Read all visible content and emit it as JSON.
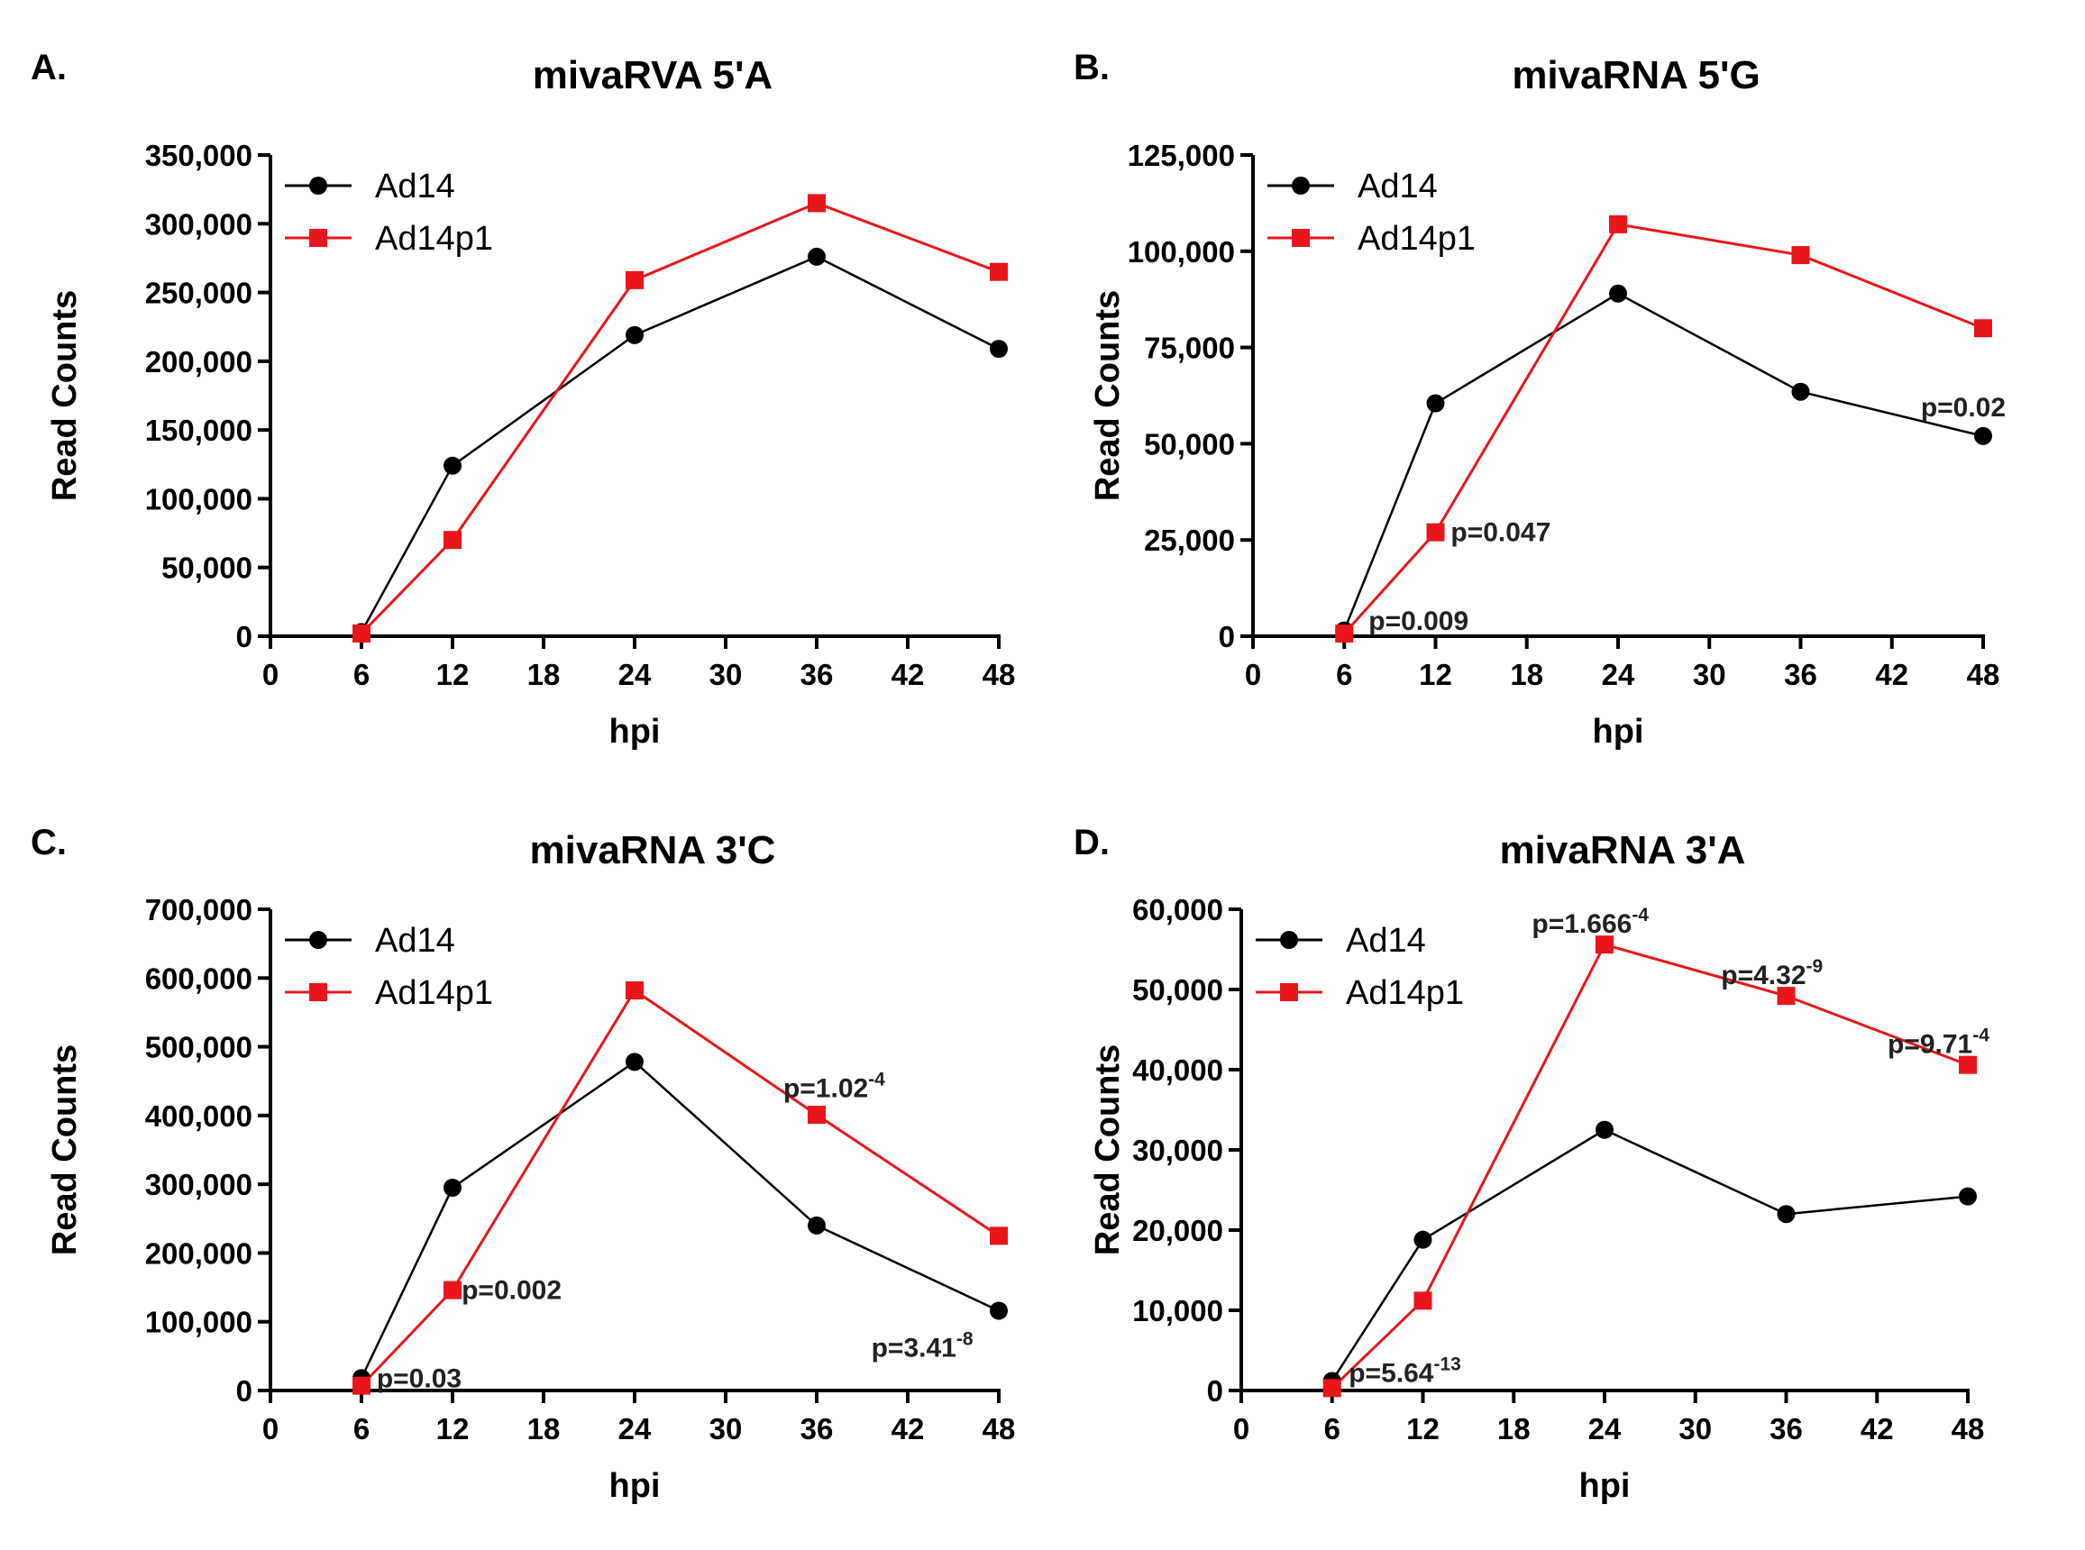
{
  "chart_data": [
    {
      "panel_label": "A.",
      "title": "mivaRVA 5'A",
      "type": "line",
      "xlabel": "hpi",
      "ylabel": "Read Counts",
      "xlim": [
        0,
        48
      ],
      "ylim": [
        0,
        350000
      ],
      "xticks": [
        0,
        6,
        12,
        18,
        24,
        30,
        36,
        42,
        48
      ],
      "yticks": [
        0,
        50000,
        100000,
        150000,
        200000,
        250000,
        300000,
        350000
      ],
      "ytick_labels": [
        "0",
        "50,000",
        "100,000",
        "150,000",
        "200,000",
        "250,000",
        "300,000",
        "350,000"
      ],
      "x": [
        6,
        12,
        24,
        36,
        48
      ],
      "series": [
        {
          "name": "Ad14",
          "color": "#000000",
          "marker": "circle",
          "values": [
            3000,
            124000,
            219000,
            276000,
            209000
          ]
        },
        {
          "name": "Ad14p1",
          "color": "#e8161b",
          "marker": "square",
          "values": [
            2000,
            70000,
            259000,
            315000,
            265000
          ]
        }
      ],
      "legend": "top-left",
      "annotations": []
    },
    {
      "panel_label": "B.",
      "title": "mivaRNA 5'G",
      "type": "line",
      "xlabel": "hpi",
      "ylabel": "Read Counts",
      "xlim": [
        0,
        48
      ],
      "ylim": [
        0,
        125000
      ],
      "xticks": [
        0,
        6,
        12,
        18,
        24,
        30,
        36,
        42,
        48
      ],
      "yticks": [
        0,
        25000,
        50000,
        75000,
        100000,
        125000
      ],
      "ytick_labels": [
        "0",
        "25,000",
        "50,000",
        "75,000",
        "100,000",
        "125,000"
      ],
      "x": [
        6,
        12,
        24,
        36,
        48
      ],
      "series": [
        {
          "name": "Ad14",
          "color": "#000000",
          "marker": "circle",
          "values": [
            1500,
            60500,
            89000,
            63500,
            52000
          ]
        },
        {
          "name": "Ad14p1",
          "color": "#e8161b",
          "marker": "square",
          "values": [
            700,
            27000,
            107000,
            99000,
            80000
          ]
        }
      ],
      "legend": "top-left",
      "annotations": [
        {
          "text": "p=0.009",
          "sup": "",
          "x": 7.6,
          "y": 4000
        },
        {
          "text": "p=0.047",
          "sup": "",
          "x": 13,
          "y": 27000
        },
        {
          "text": "p=0.02",
          "sup": "",
          "x": 43.9,
          "y": 59500
        }
      ]
    },
    {
      "panel_label": "C.",
      "title": "mivaRNA 3'C",
      "type": "line",
      "xlabel": "hpi",
      "ylabel": "Read Counts",
      "xlim": [
        0,
        48
      ],
      "ylim": [
        0,
        700000
      ],
      "xticks": [
        0,
        6,
        12,
        18,
        24,
        30,
        36,
        42,
        48
      ],
      "yticks": [
        0,
        100000,
        200000,
        300000,
        400000,
        500000,
        600000,
        700000
      ],
      "ytick_labels": [
        "0",
        "100,000",
        "200,000",
        "300,000",
        "400,000",
        "500,000",
        "600,000",
        "700,000"
      ],
      "x": [
        6,
        12,
        24,
        36,
        48
      ],
      "series": [
        {
          "name": "Ad14",
          "color": "#000000",
          "marker": "circle",
          "values": [
            18000,
            295000,
            478000,
            240000,
            116000
          ]
        },
        {
          "name": "Ad14p1",
          "color": "#e8161b",
          "marker": "square",
          "values": [
            7000,
            146000,
            582000,
            401000,
            225000
          ]
        }
      ],
      "legend": "top-left",
      "annotations": [
        {
          "text": "p=0.03",
          "sup": "",
          "x": 7,
          "y": 18000
        },
        {
          "text": "p=0.002",
          "sup": "",
          "x": 12.6,
          "y": 146000
        },
        {
          "text": "p=1.02",
          "sup": "-4",
          "x": 33.8,
          "y": 440000
        },
        {
          "text": "p=3.41",
          "sup": "-8",
          "x": 39.6,
          "y": 62000
        }
      ]
    },
    {
      "panel_label": "D.",
      "title": "mivaRNA 3'A",
      "type": "line",
      "xlabel": "hpi",
      "ylabel": "Read Counts",
      "xlim": [
        0,
        48
      ],
      "ylim": [
        0,
        60000
      ],
      "xticks": [
        0,
        6,
        12,
        18,
        24,
        30,
        36,
        42,
        48
      ],
      "yticks": [
        0,
        10000,
        20000,
        30000,
        40000,
        50000,
        60000
      ],
      "ytick_labels": [
        "0",
        "10,000",
        "20,000",
        "30,000",
        "40,000",
        "50,000",
        "60,000"
      ],
      "x": [
        6,
        12,
        24,
        36,
        48
      ],
      "series": [
        {
          "name": "Ad14",
          "color": "#000000",
          "marker": "circle",
          "values": [
            1200,
            18800,
            32500,
            22000,
            24200
          ]
        },
        {
          "name": "Ad14p1",
          "color": "#e8161b",
          "marker": "square",
          "values": [
            300,
            11200,
            55600,
            49200,
            40600
          ]
        }
      ],
      "legend": "top-left",
      "annotations": [
        {
          "text": "p=5.64",
          "sup": "-13",
          "x": 7.1,
          "y": 2200
        },
        {
          "text": "p=1.666",
          "sup": "-4",
          "x": 19.2,
          "y": 58200
        },
        {
          "text": "p=4.32",
          "sup": "-9",
          "x": 31.7,
          "y": 51800
        },
        {
          "text": "p=9.71",
          "sup": "-4",
          "x": 42.7,
          "y": 43200
        }
      ]
    }
  ]
}
